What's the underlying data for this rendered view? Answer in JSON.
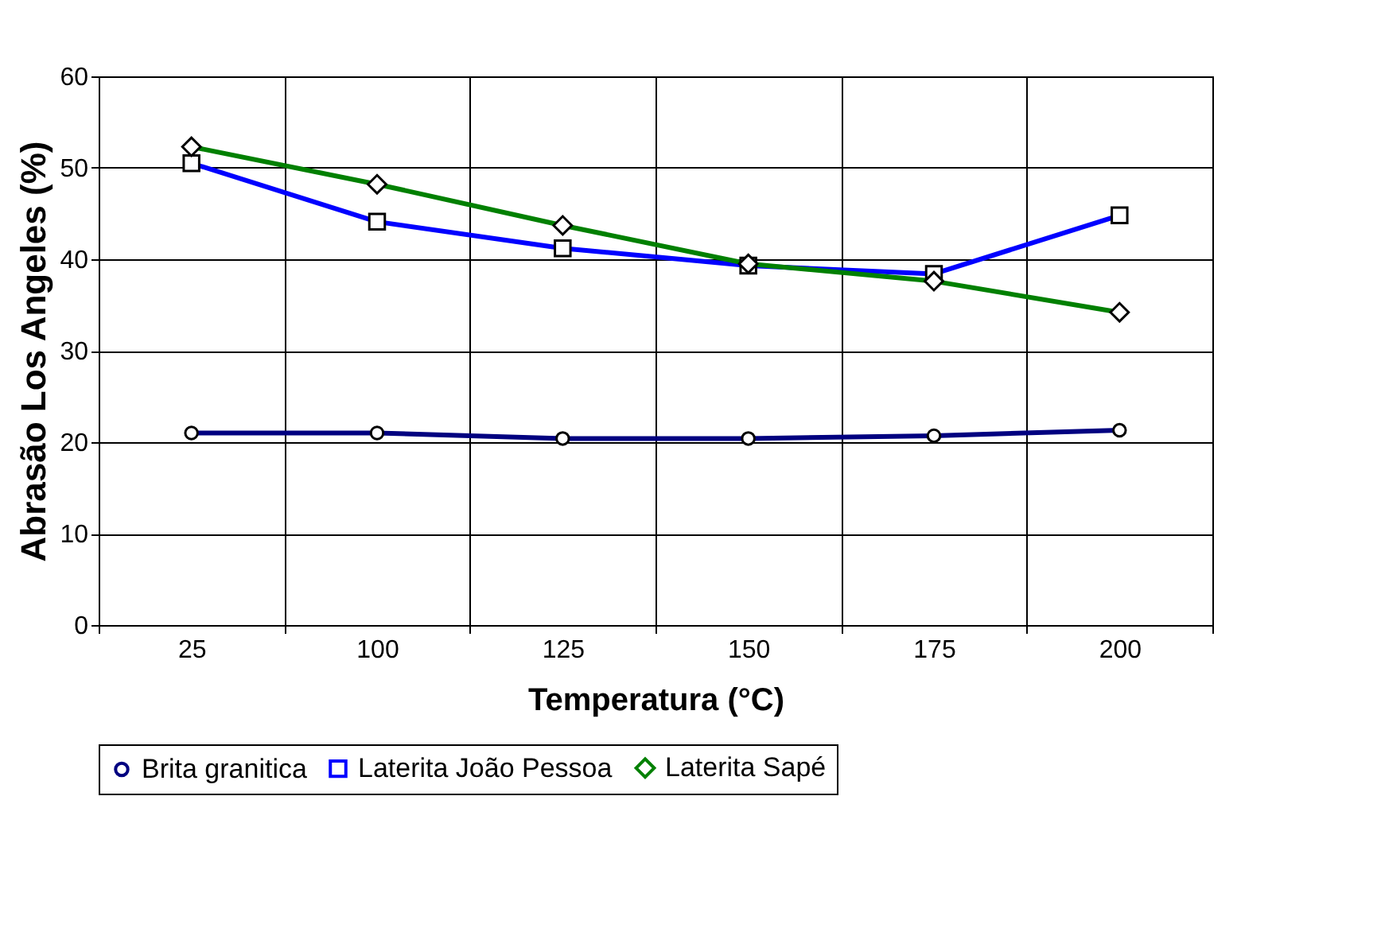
{
  "chart_data": {
    "type": "line",
    "xlabel": "Temperatura (°C)",
    "ylabel": "Abrasão Los Angeles (%)",
    "categories": [
      "25",
      "100",
      "125",
      "150",
      "175",
      "200"
    ],
    "series": [
      {
        "name": "Brita granitica",
        "color": "#000080",
        "marker": "circle",
        "values": [
          21.0,
          21.0,
          20.4,
          20.4,
          20.7,
          21.3
        ]
      },
      {
        "name": "Laterita João Pessoa",
        "color": "#0000ff",
        "marker": "square",
        "values": [
          50.5,
          44.1,
          41.2,
          39.3,
          38.4,
          44.8
        ]
      },
      {
        "name": "Laterita Sapé",
        "color": "#008000",
        "marker": "diamond",
        "values": [
          52.3,
          48.2,
          43.7,
          39.5,
          37.6,
          34.2
        ]
      }
    ],
    "ylim": [
      0,
      60
    ],
    "yticks": [
      0,
      10,
      20,
      30,
      40,
      50,
      60
    ],
    "grid": true,
    "legend": "bottom",
    "line_style": "solid"
  }
}
